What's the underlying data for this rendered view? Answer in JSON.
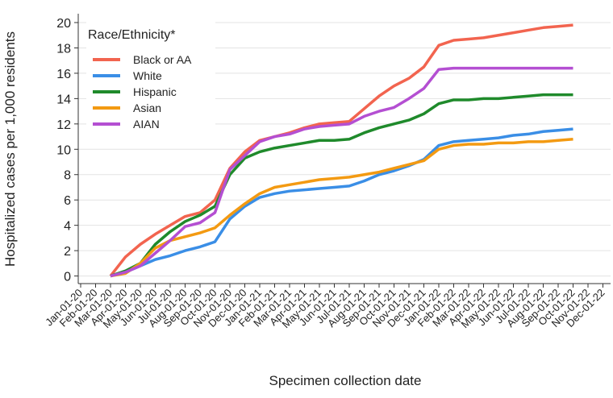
{
  "chart_data": {
    "type": "line",
    "y_label": "Hospitalized cases per 1,000 residents",
    "x_label": "Specimen collection date",
    "legend_title": "Race/Ethnicity*",
    "legend_position": "top-left",
    "grid": true,
    "x": [
      "Jan-01-20",
      "Feb-01-20",
      "Mar-01-20",
      "Apr-01-20",
      "May-01-20",
      "Jun-01-20",
      "Jul-01-20",
      "Aug-01-20",
      "Sep-01-20",
      "Oct-01-20",
      "Nov-01-20",
      "Dec-01-20",
      "Jan-01-21",
      "Feb-01-21",
      "Mar-01-21",
      "Apr-01-21",
      "May-01-21",
      "Jun-01-21",
      "Jul-01-21",
      "Aug-01-21",
      "Sep-01-21",
      "Oct-01-21",
      "Nov-01-21",
      "Dec-01-21",
      "Jan-01-22",
      "Feb-01-22",
      "Mar-01-22",
      "Apr-01-22",
      "May-01-22",
      "Jun-01-22",
      "Jul-01-22",
      "Aug-01-22",
      "Sep-01-22",
      "Oct-01-22",
      "Nov-01-22",
      "Dec-01-22"
    ],
    "ylim": [
      -0.6,
      20.7
    ],
    "yticks": [
      0,
      2,
      4,
      6,
      8,
      10,
      12,
      14,
      16,
      18,
      20
    ],
    "series": [
      {
        "name": "Black or AA",
        "color": "#f2644f",
        "values": [
          null,
          null,
          0,
          1.5,
          2.5,
          3.3,
          4,
          4.7,
          5,
          6,
          8.5,
          9.8,
          10.7,
          11,
          11.3,
          11.7,
          12,
          12.1,
          12.2,
          13.2,
          14.2,
          15,
          15.6,
          16.5,
          18.2,
          18.6,
          18.7,
          18.8,
          19,
          19.2,
          19.4,
          19.6,
          19.7,
          19.8,
          null,
          null
        ]
      },
      {
        "name": "White",
        "color": "#3a8ee6",
        "values": [
          null,
          null,
          0,
          0.3,
          0.8,
          1.3,
          1.6,
          2,
          2.3,
          2.7,
          4.5,
          5.5,
          6.2,
          6.5,
          6.7,
          6.8,
          6.9,
          7,
          7.1,
          7.5,
          8,
          8.3,
          8.7,
          9.2,
          10.3,
          10.6,
          10.7,
          10.8,
          10.9,
          11.1,
          11.2,
          11.4,
          11.5,
          11.6,
          null,
          null
        ]
      },
      {
        "name": "Hispanic",
        "color": "#1f8a2b",
        "values": [
          null,
          null,
          0,
          0.4,
          1,
          2.5,
          3.5,
          4.3,
          4.8,
          5.5,
          8,
          9.3,
          9.8,
          10.1,
          10.3,
          10.5,
          10.7,
          10.7,
          10.8,
          11.3,
          11.7,
          12,
          12.3,
          12.8,
          13.6,
          13.9,
          13.9,
          14,
          14,
          14.1,
          14.2,
          14.3,
          14.3,
          14.3,
          null,
          null
        ]
      },
      {
        "name": "Asian",
        "color": "#f39a12",
        "values": [
          null,
          null,
          0,
          0.2,
          1,
          2.2,
          2.8,
          3.1,
          3.4,
          3.8,
          4.8,
          5.7,
          6.5,
          7,
          7.2,
          7.4,
          7.6,
          7.7,
          7.8,
          8,
          8.2,
          8.5,
          8.8,
          9.1,
          10,
          10.3,
          10.4,
          10.4,
          10.5,
          10.5,
          10.6,
          10.6,
          10.7,
          10.8,
          null,
          null
        ]
      },
      {
        "name": "AIAN",
        "color": "#b44fd2",
        "values": [
          null,
          null,
          0,
          0.3,
          0.8,
          1.8,
          2.8,
          3.9,
          4.2,
          5,
          8.4,
          9.5,
          10.6,
          11,
          11.2,
          11.6,
          11.8,
          11.9,
          12,
          12.6,
          13,
          13.3,
          14,
          14.8,
          16.3,
          16.4,
          16.4,
          16.4,
          16.4,
          16.4,
          16.4,
          16.4,
          16.4,
          16.4,
          null,
          null
        ]
      }
    ]
  }
}
